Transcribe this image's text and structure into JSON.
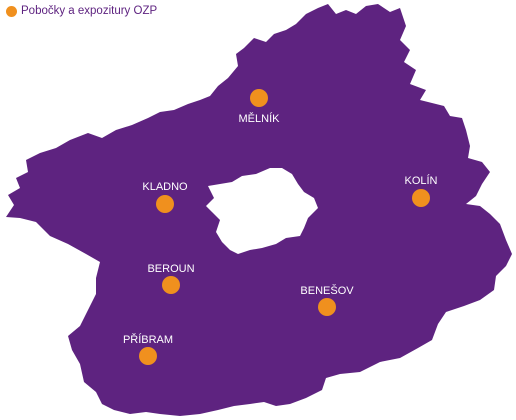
{
  "legend": {
    "label": "Pobočky a expozitury OZP",
    "marker_color": "#f0901e"
  },
  "map": {
    "region_color": "#5e2380",
    "hole_color": "#ffffff",
    "label_color": "#ffffff",
    "cities": [
      {
        "id": "melnik",
        "name": "MĚLNÍK"
      },
      {
        "id": "kladno",
        "name": "KLADNO"
      },
      {
        "id": "kolin",
        "name": "KOLÍN"
      },
      {
        "id": "beroun",
        "name": "BEROUN"
      },
      {
        "id": "benesov",
        "name": "BENEŠOV"
      },
      {
        "id": "pribram",
        "name": "PŘÍBRAM"
      }
    ]
  }
}
